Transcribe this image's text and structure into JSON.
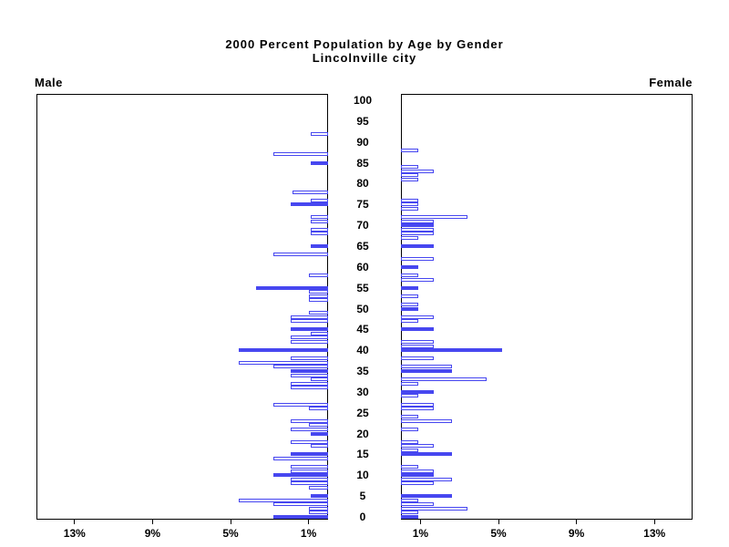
{
  "title": {
    "line1": "2000 Percent Population by Age by Gender",
    "line2": "Lincolnville city"
  },
  "panel_labels": {
    "left": "Male",
    "right": "Female"
  },
  "age_axis": {
    "min": 0,
    "max": 100,
    "tick_interval": 5,
    "tick_labels": [
      "0",
      "5",
      "10",
      "15",
      "20",
      "25",
      "30",
      "35",
      "40",
      "45",
      "50",
      "55",
      "60",
      "65",
      "70",
      "75",
      "80",
      "85",
      "90",
      "95",
      "100"
    ]
  },
  "x_axis": {
    "male_tick_labels": [
      "13%",
      "9%",
      "5%",
      "1%"
    ],
    "male_tick_pcts": [
      13,
      9,
      5,
      1
    ],
    "female_tick_labels": [
      "1%",
      "5%",
      "9%",
      "13%"
    ],
    "female_tick_pcts": [
      1,
      5,
      9,
      13
    ],
    "max_pct": 15,
    "unit": "percent of population"
  },
  "colors": {
    "bar_blue": "#4747f0",
    "axis_black": "#000000",
    "background": "#ffffff"
  },
  "chart_data": {
    "type": "bar",
    "orientation": "horizontal-pyramid",
    "title": "2000 Percent Population by Age by Gender",
    "subtitle": "Lincolnville city",
    "xlabel_left": "Male percent (increasing leftward, ticks 1%,5%,9%,13%)",
    "xlabel_right": "Female percent (increasing rightward, ticks 1%,5%,9%,13%)",
    "ylabel": "Single year of age, 0 to 100, labeled every 5 years",
    "xlim_pct": [
      0,
      15
    ],
    "grid": false,
    "legend": "none (solid blue bars = ages that are multiples of 5; white bars with blue outline = other single years of age)",
    "ages": [
      0,
      1,
      2,
      3,
      4,
      5,
      6,
      7,
      8,
      9,
      10,
      11,
      12,
      13,
      14,
      15,
      16,
      17,
      18,
      19,
      20,
      21,
      22,
      23,
      24,
      25,
      26,
      27,
      28,
      29,
      30,
      31,
      32,
      33,
      34,
      35,
      36,
      37,
      38,
      39,
      40,
      41,
      42,
      43,
      44,
      45,
      46,
      47,
      48,
      49,
      50,
      51,
      52,
      53,
      54,
      55,
      56,
      57,
      58,
      59,
      60,
      61,
      62,
      63,
      64,
      65,
      66,
      67,
      68,
      69,
      70,
      71,
      72,
      73,
      74,
      75,
      76,
      77,
      78,
      79,
      80,
      81,
      82,
      83,
      84,
      85,
      86,
      87,
      88,
      89,
      90,
      91,
      92,
      93,
      94,
      95,
      96,
      97,
      98,
      99,
      100
    ],
    "series": [
      {
        "name": "Male percent by single year of age",
        "values": [
          2.8,
          1.0,
          1.0,
          2.8,
          4.6,
          0.9,
          0,
          1.0,
          1.9,
          1.9,
          2.8,
          1.9,
          1.9,
          0,
          2.8,
          1.9,
          0,
          0.9,
          1.9,
          0,
          0.9,
          1.9,
          1.0,
          1.9,
          0,
          0,
          1.0,
          2.8,
          0,
          0,
          0,
          1.9,
          1.9,
          0.9,
          1.9,
          1.9,
          2.8,
          4.6,
          1.9,
          0,
          4.6,
          0,
          1.9,
          1.9,
          0.9,
          1.9,
          0,
          1.9,
          1.9,
          1.0,
          0,
          0,
          1.0,
          1.0,
          1.0,
          3.7,
          0,
          0,
          1.0,
          0,
          0,
          0,
          0,
          2.8,
          0,
          0.9,
          0,
          0,
          0.9,
          0.9,
          0,
          0.9,
          0.9,
          0,
          0,
          1.9,
          0.9,
          0,
          1.8,
          0,
          0,
          0,
          0,
          0,
          0,
          0.9,
          0,
          2.8,
          0,
          0,
          0,
          0,
          0.9,
          0,
          0,
          0,
          0,
          0,
          0,
          0,
          0
        ]
      },
      {
        "name": "Female percent by single year of age",
        "values": [
          0.9,
          0.9,
          3.4,
          1.7,
          0.9,
          2.6,
          0,
          0,
          1.7,
          2.6,
          1.7,
          1.7,
          0.9,
          0,
          0,
          2.6,
          0.9,
          1.7,
          0.9,
          0,
          0,
          0.9,
          0,
          2.6,
          0.9,
          0,
          1.7,
          1.7,
          0,
          0.9,
          1.7,
          0,
          0.9,
          4.4,
          0,
          2.6,
          2.6,
          0,
          1.7,
          0,
          5.2,
          1.7,
          1.7,
          0,
          0,
          1.7,
          0,
          0.9,
          1.7,
          0,
          0.9,
          0.9,
          0,
          0.9,
          0,
          0.9,
          0,
          1.7,
          0.9,
          0,
          0.9,
          0,
          1.7,
          0,
          0,
          1.7,
          0,
          0.9,
          1.7,
          1.7,
          1.7,
          1.7,
          3.4,
          0,
          0.9,
          0.9,
          0.9,
          0,
          0,
          0,
          0,
          0.9,
          0.9,
          1.7,
          0.9,
          0,
          0,
          0,
          0.9,
          0,
          0,
          0,
          0,
          0,
          0,
          0,
          0,
          0,
          0,
          0,
          0,
          0
        ]
      }
    ],
    "filled_ages_male": [
      0,
      5,
      10,
      15,
      20,
      35,
      40,
      45,
      55,
      65,
      75,
      85
    ],
    "filled_ages_female": [
      0,
      5,
      10,
      15,
      30,
      35,
      40,
      45,
      50,
      55,
      60,
      65,
      70
    ]
  }
}
